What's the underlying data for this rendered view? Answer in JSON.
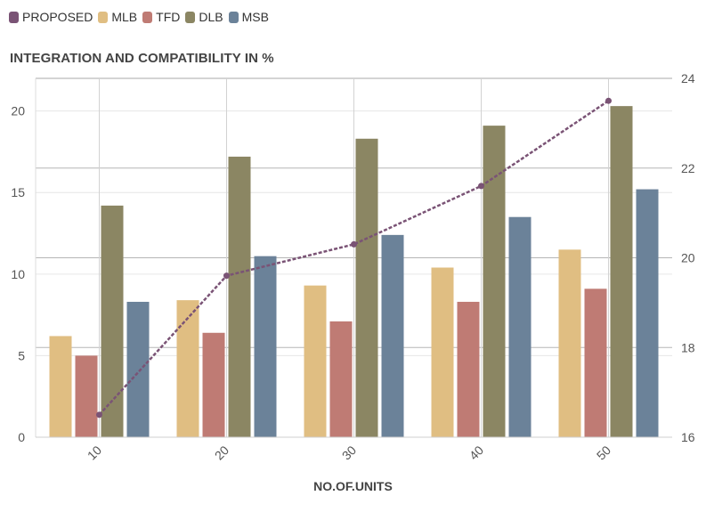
{
  "legend": {
    "items": [
      {
        "label": "PROPOSED",
        "color": "#7a5375"
      },
      {
        "label": "MLB",
        "color": "#e0be82"
      },
      {
        "label": "TFD",
        "color": "#bf7b74"
      },
      {
        "label": "DLB",
        "color": "#8b8663"
      },
      {
        "label": "MSB",
        "color": "#6b8299"
      }
    ]
  },
  "chart_data": {
    "type": "bar",
    "title": "INTEGRATION AND COMPATIBILITY IN %",
    "xlabel": "NO.OF.UNITS",
    "ylabel": "",
    "categories": [
      "10",
      "20",
      "30",
      "40",
      "50"
    ],
    "ylim": [
      0,
      22
    ],
    "yticks": [
      "0",
      "5",
      "10",
      "15",
      "20"
    ],
    "y2lim": [
      16,
      24
    ],
    "y2ticks": [
      "16",
      "18",
      "20",
      "22",
      "24"
    ],
    "series": [
      {
        "name": "MLB",
        "color": "#e0be82",
        "values": [
          6.2,
          8.4,
          9.3,
          10.4,
          11.5
        ]
      },
      {
        "name": "TFD",
        "color": "#bf7b74",
        "values": [
          5.0,
          6.4,
          7.1,
          8.3,
          9.1
        ]
      },
      {
        "name": "DLB",
        "color": "#8b8663",
        "values": [
          14.2,
          17.2,
          18.3,
          19.1,
          20.3
        ]
      },
      {
        "name": "MSB",
        "color": "#6b8299",
        "values": [
          8.3,
          11.1,
          12.4,
          13.5,
          15.2
        ]
      }
    ],
    "line_series": {
      "name": "PROPOSED",
      "axis": "right",
      "style": "dashed",
      "color": "#7a5375",
      "values": [
        16.5,
        19.6,
        20.3,
        21.6,
        23.5
      ]
    }
  }
}
